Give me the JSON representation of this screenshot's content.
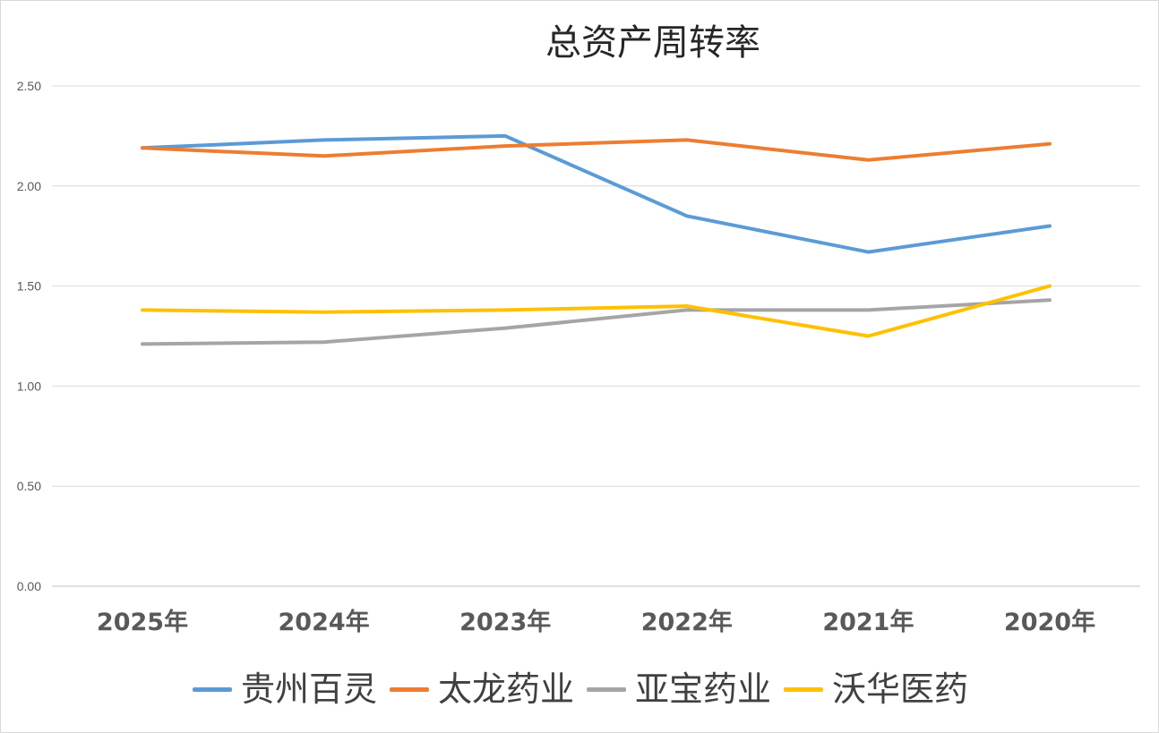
{
  "chart_data": {
    "type": "line",
    "title": "总资产周转率",
    "categories": [
      "2025年",
      "2024年",
      "2023年",
      "2022年",
      "2021年",
      "2020年"
    ],
    "ylim": [
      0,
      2.5
    ],
    "yticks": [
      "0.00",
      "0.50",
      "1.00",
      "1.50",
      "2.00",
      "2.50"
    ],
    "grid": true,
    "legend_position": "bottom",
    "series": [
      {
        "name": "贵州百灵",
        "color": "#5b9bd5",
        "values": [
          2.19,
          2.23,
          2.25,
          1.85,
          1.67,
          1.8
        ]
      },
      {
        "name": "太龙药业",
        "color": "#ed7d31",
        "values": [
          2.19,
          2.15,
          2.2,
          2.23,
          2.13,
          2.21
        ]
      },
      {
        "name": "亚宝药业",
        "color": "#a5a5a5",
        "values": [
          1.21,
          1.22,
          1.29,
          1.38,
          1.38,
          1.43
        ]
      },
      {
        "name": "沃华医药",
        "color": "#ffc000",
        "values": [
          1.38,
          1.37,
          1.38,
          1.4,
          1.25,
          1.5
        ]
      }
    ]
  }
}
